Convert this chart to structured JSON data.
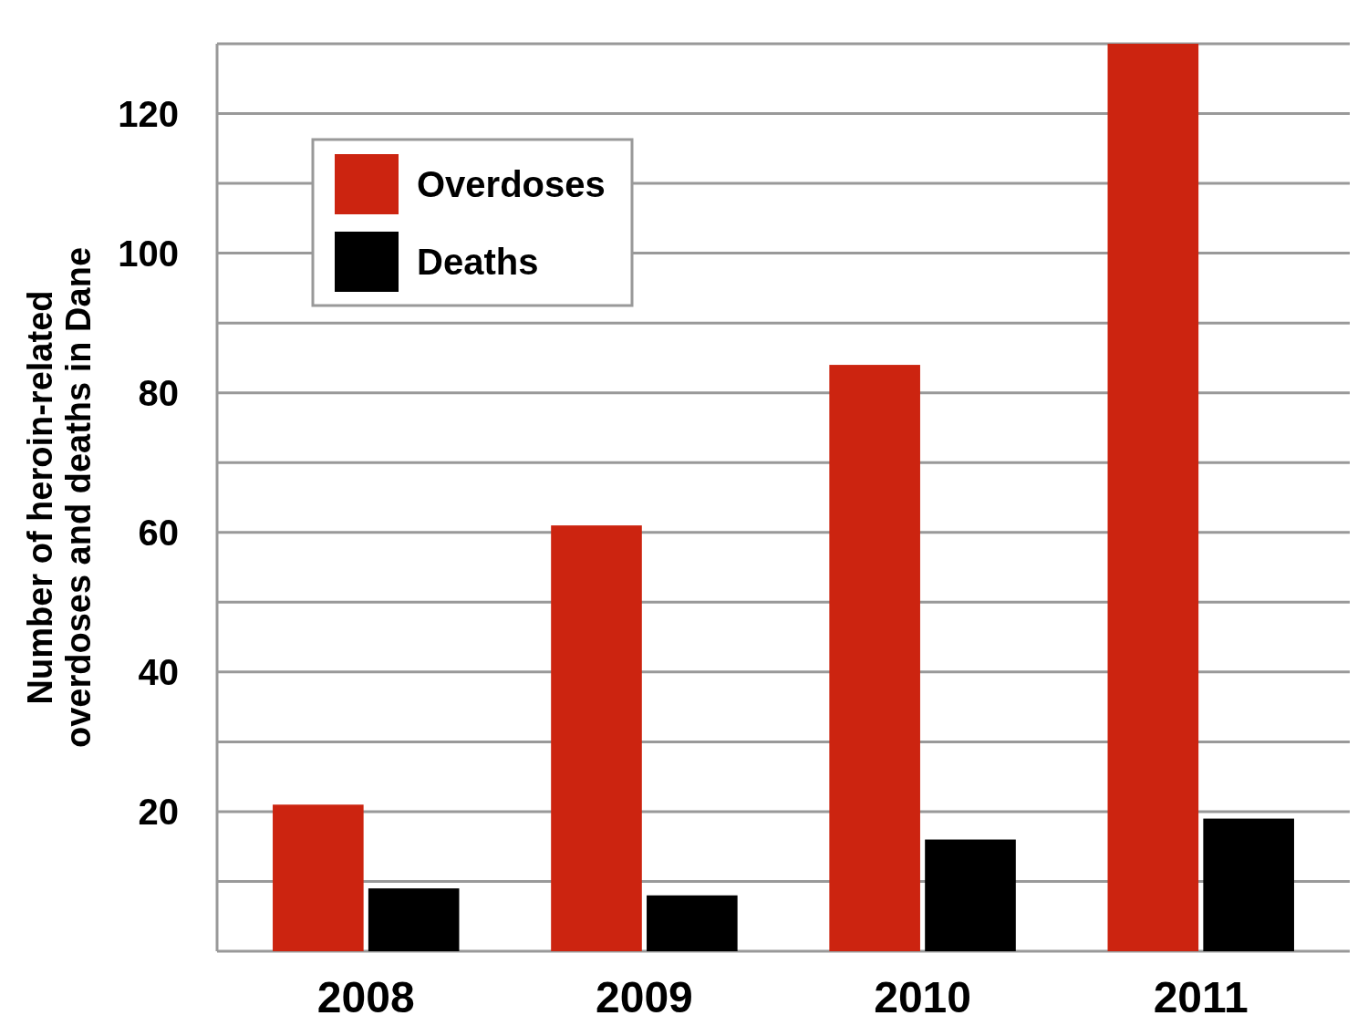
{
  "chart_data": {
    "type": "bar",
    "ylabel": "Number of heroin-related\noverdoses and deaths in Dane",
    "categories": [
      "2008",
      "2009",
      "2010",
      "2011"
    ],
    "series": [
      {
        "name": "Overdoses",
        "color": "#cc2410",
        "values": [
          21,
          61,
          84,
          130
        ]
      },
      {
        "name": "Deaths",
        "color": "#000000",
        "values": [
          9,
          8,
          16,
          19
        ]
      }
    ],
    "ylim": [
      0,
      130
    ],
    "yticks": [
      {
        "value": 0,
        "label": null
      },
      {
        "value": 10,
        "label": null
      },
      20,
      {
        "value": 30,
        "label": null
      },
      40,
      {
        "value": 50,
        "label": null
      },
      60,
      {
        "value": 70,
        "label": null
      },
      80,
      {
        "value": 90,
        "label": null
      },
      100,
      {
        "value": 110,
        "label": null
      },
      120,
      {
        "value": 130,
        "label": null
      }
    ],
    "grid": "y",
    "legend": "top left"
  }
}
